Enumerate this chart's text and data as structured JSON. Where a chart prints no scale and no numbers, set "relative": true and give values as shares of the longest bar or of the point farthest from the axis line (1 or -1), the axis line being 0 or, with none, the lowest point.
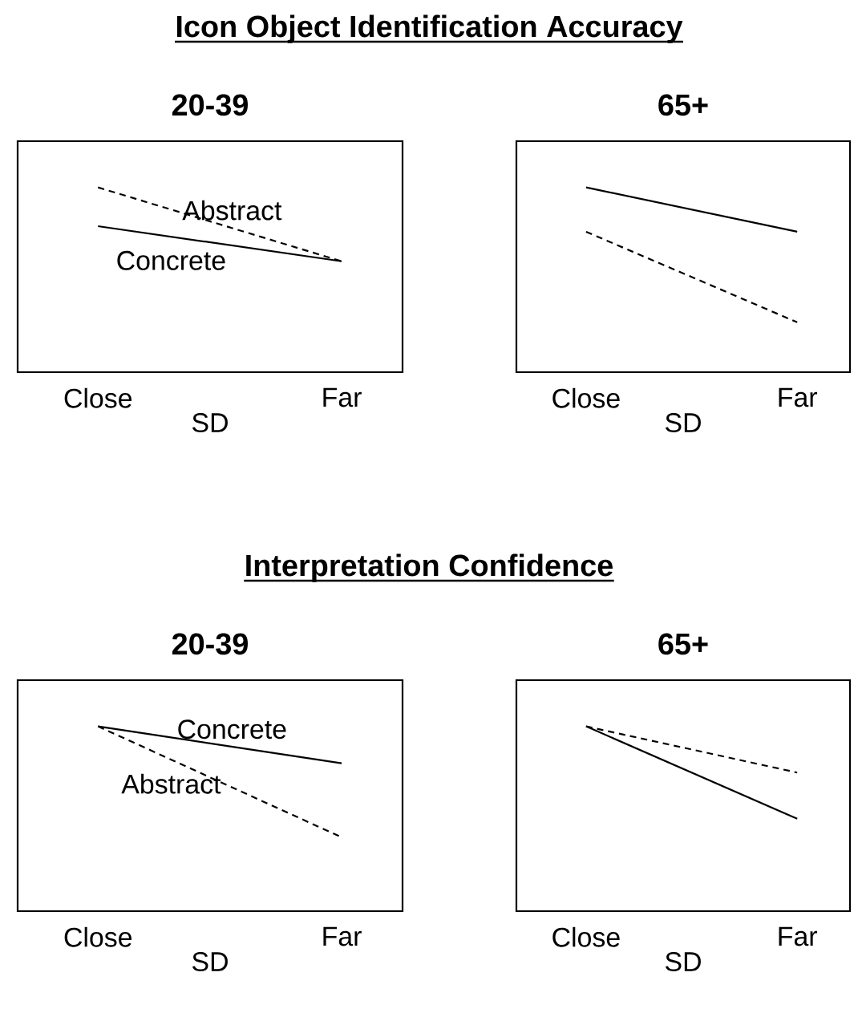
{
  "chart_data": [
    {
      "type": "line",
      "annotations": [
        "Icon Object Identification Accuracy"
      ],
      "title": "20-39",
      "xlabel": "SD",
      "categories": [
        "Close",
        "Far"
      ],
      "relative": true,
      "series": [
        {
          "name": "Abstract",
          "color": "#000000",
          "line_style": "dashed",
          "values": [
            1,
            0.6
          ]
        },
        {
          "name": "Concrete",
          "color": "#000000",
          "line_style": "solid",
          "values": [
            0.79,
            0.6
          ]
        }
      ]
    },
    {
      "type": "line",
      "title": "65+",
      "xlabel": "SD",
      "categories": [
        "Close",
        "Far"
      ],
      "relative": true,
      "series": [
        {
          "color": "#000000",
          "line_style": "solid",
          "values": [
            1,
            0.76
          ]
        },
        {
          "color": "#000000",
          "line_style": "dashed",
          "values": [
            0.76,
            0.27
          ]
        }
      ]
    },
    {
      "type": "line",
      "annotations": [
        "Interpretation Confidence"
      ],
      "title": "20-39",
      "xlabel": "SD",
      "categories": [
        "Close",
        "Far"
      ],
      "relative": true,
      "series": [
        {
          "name": "Concrete",
          "color": "#000000",
          "line_style": "solid",
          "values": [
            1,
            0.8
          ]
        },
        {
          "name": "Abstract",
          "color": "#000000",
          "line_style": "dashed",
          "values": [
            1,
            0.4
          ]
        }
      ]
    },
    {
      "type": "line",
      "title": "65+",
      "xlabel": "SD",
      "categories": [
        "Close",
        "Far"
      ],
      "relative": true,
      "series": [
        {
          "color": "#000000",
          "line_style": "solid",
          "values": [
            1,
            0.5
          ]
        },
        {
          "color": "#000000",
          "line_style": "dashed",
          "values": [
            1,
            0.75
          ]
        }
      ]
    }
  ]
}
